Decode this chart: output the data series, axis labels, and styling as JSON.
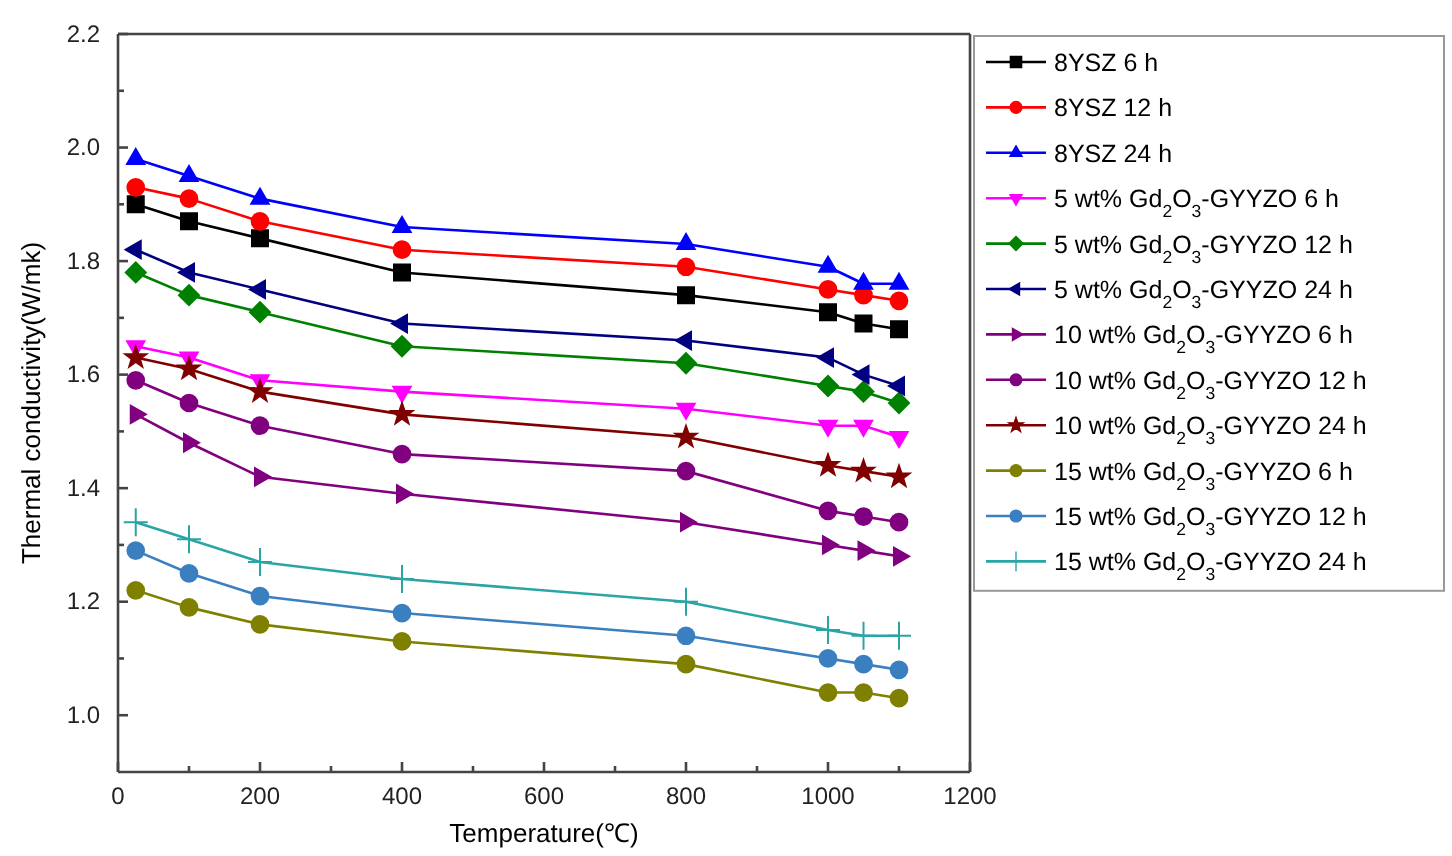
{
  "chart_data": {
    "type": "line",
    "xlabel": "Temperature(℃)",
    "ylabel": "Thermal conductivity(W/mk)",
    "x": [
      25,
      100,
      200,
      400,
      800,
      1000,
      1050,
      1100
    ],
    "xlim": [
      0,
      1200
    ],
    "xticks": [
      0,
      {
        "value": 100,
        "label": null
      },
      200,
      {
        "value": 300,
        "label": null
      },
      400,
      {
        "value": 500,
        "label": null
      },
      600,
      {
        "value": 700,
        "label": null
      },
      800,
      {
        "value": 900,
        "label": null
      },
      1000,
      {
        "value": 1100,
        "label": null
      },
      1200
    ],
    "ylim": [
      0.9,
      2.2
    ],
    "yticks": [
      {
        "value": 1,
        "label": "1.0"
      },
      {
        "value": 1.1,
        "label": null
      },
      1.2,
      {
        "value": 1.3,
        "label": null
      },
      1.4,
      {
        "value": 1.5,
        "label": null
      },
      1.6,
      {
        "value": 1.7,
        "label": null
      },
      1.8,
      {
        "value": 1.9,
        "label": null
      },
      {
        "value": 2,
        "label": "2.0"
      },
      {
        "value": 2.1,
        "label": null
      },
      2.2
    ],
    "grid": false,
    "legend": "right",
    "line_style": "solid",
    "series": [
      {
        "name": "8YSZ 6 h",
        "color": "#000000",
        "marker": "square",
        "values": [
          1.9,
          1.87,
          1.84,
          1.78,
          1.74,
          1.71,
          1.69,
          1.68
        ]
      },
      {
        "name": "8YSZ 12 h",
        "color": "#ff0000",
        "marker": "circle",
        "values": [
          1.93,
          1.91,
          1.87,
          1.82,
          1.79,
          1.75,
          1.74,
          1.73
        ]
      },
      {
        "name": "8YSZ 24 h",
        "color": "#0000ff",
        "marker": "triangle",
        "values": [
          1.98,
          1.95,
          1.91,
          1.86,
          1.83,
          1.79,
          1.76,
          1.76
        ]
      },
      {
        "name": "5 wt% Gd$_{2}$O$_{3}$-GYYZO 6 h",
        "color": "#ff00ff",
        "marker": "triangle-down",
        "values": [
          1.65,
          1.63,
          1.59,
          1.57,
          1.54,
          1.51,
          1.51,
          1.49
        ]
      },
      {
        "name": "5 wt% Gd$_{2}$O$_{3}$-GYYZO 12 h",
        "color": "#008000",
        "marker": "diamond",
        "values": [
          1.78,
          1.74,
          1.71,
          1.65,
          1.62,
          1.58,
          1.57,
          1.55
        ]
      },
      {
        "name": "5 wt% Gd$_{2}$O$_{3}$-GYYZO 24 h",
        "color": "#000080",
        "marker": "triangle-left",
        "values": [
          1.82,
          1.78,
          1.75,
          1.69,
          1.66,
          1.63,
          1.6,
          1.58
        ]
      },
      {
        "name": "10 wt% Gd$_{2}$O$_{3}$-GYYZO 6 h",
        "color": "#800080",
        "marker": "triangle-right",
        "values": [
          1.53,
          1.48,
          1.42,
          1.39,
          1.34,
          1.3,
          1.29,
          1.28
        ]
      },
      {
        "name": "10 wt% Gd$_{2}$O$_{3}$-GYYZO 12 h",
        "color": "#800080",
        "marker": "circle",
        "values": [
          1.59,
          1.55,
          1.51,
          1.46,
          1.43,
          1.36,
          1.35,
          1.34
        ]
      },
      {
        "name": "10 wt% Gd$_{2}$O$_{3}$-GYYZO 24 h",
        "color": "#800000",
        "marker": "star",
        "values": [
          1.63,
          1.61,
          1.57,
          1.53,
          1.49,
          1.44,
          1.43,
          1.42
        ]
      },
      {
        "name": "15 wt% Gd$_{2}$O$_{3}$-GYYZO 6 h",
        "color": "#808000",
        "marker": "circle",
        "values": [
          1.22,
          1.19,
          1.16,
          1.13,
          1.09,
          1.04,
          1.04,
          1.03
        ]
      },
      {
        "name": "15 wt% Gd$_{2}$O$_{3}$-GYYZO 12 h",
        "color": "#3a7fc0",
        "marker": "circle",
        "values": [
          1.29,
          1.25,
          1.21,
          1.18,
          1.14,
          1.1,
          1.09,
          1.08
        ]
      },
      {
        "name": "15 wt% Gd$_{2}$O$_{3}$-GYYZO 24 h",
        "color": "#2aa5a5",
        "marker": "cross",
        "values": [
          1.34,
          1.31,
          1.27,
          1.24,
          1.2,
          1.15,
          1.14,
          1.14
        ]
      }
    ]
  }
}
